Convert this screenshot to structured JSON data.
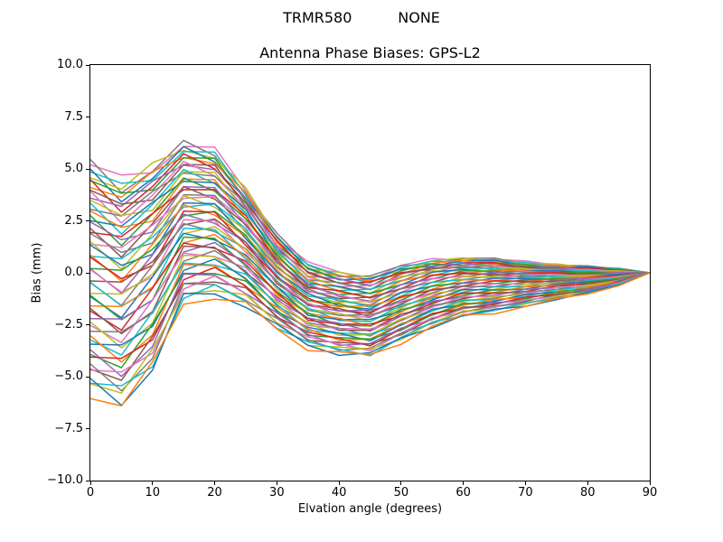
{
  "figure": {
    "suptitle": "TRMR580          NONE",
    "background_color": "#ffffff",
    "spine_color": "#000000",
    "text_color": "#000000"
  },
  "chart_data": {
    "type": "line",
    "title": "Antenna Phase Biases: GPS-L2",
    "xlabel": "Elvation angle (degrees)",
    "ylabel": "Bias (mm)",
    "xlim": [
      0,
      90
    ],
    "ylim": [
      -10.0,
      10.0
    ],
    "grid": false,
    "legend": "none",
    "x_tick_values": [
      0,
      10,
      20,
      30,
      40,
      50,
      60,
      70,
      80,
      90
    ],
    "x_tick_labels": [
      "0",
      "10",
      "20",
      "30",
      "40",
      "50",
      "60",
      "70",
      "80",
      "90"
    ],
    "y_tick_values": [
      10.0,
      7.5,
      5.0,
      2.5,
      0.0,
      -2.5,
      -5.0,
      -7.5,
      -10.0
    ],
    "y_tick_labels": [
      "10.0",
      "7.5",
      "5.0",
      "2.5",
      "0.0",
      "−2.5",
      "−5.0",
      "−7.5",
      "−10.0"
    ],
    "x": [
      0,
      5,
      10,
      15,
      20,
      25,
      30,
      35,
      40,
      45,
      50,
      55,
      60,
      65,
      70,
      75,
      80,
      85,
      90
    ],
    "num_lines": 56,
    "envelope_top": [
      5.2,
      4.3,
      5.1,
      6.2,
      5.8,
      4.0,
      1.8,
      0.4,
      0.0,
      -0.2,
      0.3,
      0.6,
      0.7,
      0.65,
      0.5,
      0.4,
      0.3,
      0.2,
      0.0
    ],
    "envelope_bottom": [
      -5.7,
      -6.3,
      -4.7,
      -1.4,
      -1.1,
      -1.6,
      -2.7,
      -3.6,
      -3.9,
      -4.0,
      -3.3,
      -2.6,
      -2.1,
      -1.9,
      -1.6,
      -1.3,
      -1.0,
      -0.6,
      0.0
    ],
    "convergence_value_at_90": 0.0,
    "line_colors": [
      "#1f77b4",
      "#ff7f0e",
      "#2ca02c",
      "#d62728",
      "#9467bd",
      "#8c564b",
      "#e377c2",
      "#7f7f7f",
      "#bcbd22",
      "#17becf"
    ],
    "line_width": 1.5
  }
}
